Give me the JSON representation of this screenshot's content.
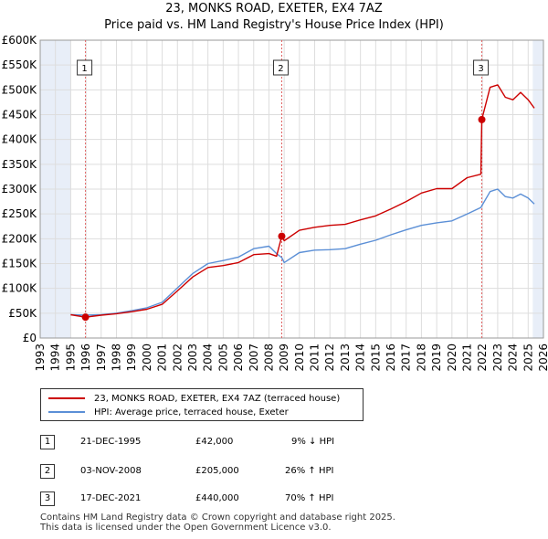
{
  "title_line1": "23, MONKS ROAD, EXETER, EX4 7AZ",
  "title_line2": "Price paid vs. HM Land Registry's House Price Index (HPI)",
  "colors": {
    "price": "#cc0000",
    "hpi": "#5b8fd6",
    "shade": "#e8eef8",
    "marker_line": "#e06060",
    "grid": "#dddddd"
  },
  "chart_data": {
    "type": "line",
    "title": "Price paid vs. HM Land Registry's House Price Index (HPI)",
    "xlabel": "",
    "ylabel": "",
    "xlim": [
      1993,
      2026
    ],
    "ylim": [
      0,
      600000
    ],
    "y_ticks": [
      0,
      50000,
      100000,
      150000,
      200000,
      250000,
      300000,
      350000,
      400000,
      450000,
      500000,
      550000,
      600000
    ],
    "y_tick_labels": [
      "£0",
      "£50K",
      "£100K",
      "£150K",
      "£200K",
      "£250K",
      "£300K",
      "£350K",
      "£400K",
      "£450K",
      "£500K",
      "£550K",
      "£600K"
    ],
    "x_ticks": [
      1993,
      1994,
      1995,
      1996,
      1997,
      1998,
      1999,
      2000,
      2001,
      2002,
      2003,
      2004,
      2005,
      2006,
      2007,
      2008,
      2009,
      2010,
      2011,
      2012,
      2013,
      2014,
      2015,
      2016,
      2017,
      2018,
      2019,
      2020,
      2021,
      2022,
      2023,
      2024,
      2025,
      2026
    ],
    "shaded_ranges": [
      [
        1993,
        1995.0
      ],
      [
        2025.3,
        2026
      ]
    ],
    "series": [
      {
        "name": "23, MONKS ROAD, EXETER, EX4 7AZ (terraced house)",
        "x": [
          1995.0,
          1995.97,
          1997,
          1998,
          1999,
          2000,
          2001,
          2002,
          2003,
          2004,
          2005,
          2006,
          2007,
          2008,
          2008.5,
          2008.84,
          2009,
          2010,
          2011,
          2012,
          2013,
          2014,
          2015,
          2016,
          2017,
          2018,
          2019,
          2020,
          2021,
          2021.9,
          2021.96,
          2022.5,
          2023,
          2023.5,
          2024,
          2024.5,
          2025,
          2025.4
        ],
        "y": [
          47000,
          42000,
          46000,
          49000,
          53000,
          58000,
          68000,
          95000,
          123000,
          142000,
          146000,
          152000,
          168000,
          170000,
          165000,
          205000,
          196000,
          217000,
          223000,
          227000,
          229000,
          238000,
          246000,
          260000,
          275000,
          292000,
          301000,
          301000,
          323000,
          330000,
          440000,
          505000,
          510000,
          485000,
          480000,
          495000,
          480000,
          463000
        ]
      },
      {
        "name": "HPI: Average price, terraced house, Exeter",
        "x": [
          1995.0,
          1995.97,
          1997,
          1998,
          1999,
          2000,
          2001,
          2002,
          2003,
          2004,
          2005,
          2006,
          2007,
          2008,
          2008.5,
          2008.84,
          2009,
          2010,
          2011,
          2012,
          2013,
          2014,
          2015,
          2016,
          2017,
          2018,
          2019,
          2020,
          2021,
          2021.9,
          2022.5,
          2023,
          2023.5,
          2024,
          2024.5,
          2025,
          2025.4
        ],
        "y": [
          47000,
          46000,
          47000,
          50000,
          55000,
          61000,
          72000,
          101000,
          130000,
          150000,
          156000,
          163000,
          180000,
          185000,
          170000,
          162000,
          152000,
          172000,
          177000,
          178000,
          180000,
          189000,
          197000,
          208000,
          218000,
          227000,
          232000,
          236000,
          250000,
          263000,
          295000,
          300000,
          285000,
          282000,
          290000,
          282000,
          270000
        ]
      }
    ],
    "sales": [
      {
        "label": "1",
        "x": 1995.97,
        "y": 42000
      },
      {
        "label": "2",
        "x": 2008.84,
        "y": 205000
      },
      {
        "label": "3",
        "x": 2021.96,
        "y": 440000
      }
    ]
  },
  "legend": {
    "price_label": "23, MONKS ROAD, EXETER, EX4 7AZ (terraced house)",
    "hpi_label": "HPI: Average price, terraced house, Exeter"
  },
  "transactions": [
    {
      "num": "1",
      "date": "21-DEC-1995",
      "price": "£42,000",
      "hpi": "9% ↓ HPI"
    },
    {
      "num": "2",
      "date": "03-NOV-2008",
      "price": "£205,000",
      "hpi": "26% ↑ HPI"
    },
    {
      "num": "3",
      "date": "17-DEC-2021",
      "price": "£440,000",
      "hpi": "70% ↑ HPI"
    }
  ],
  "footer_line1": "Contains HM Land Registry data © Crown copyright and database right 2025.",
  "footer_line2": "This data is licensed under the Open Government Licence v3.0."
}
